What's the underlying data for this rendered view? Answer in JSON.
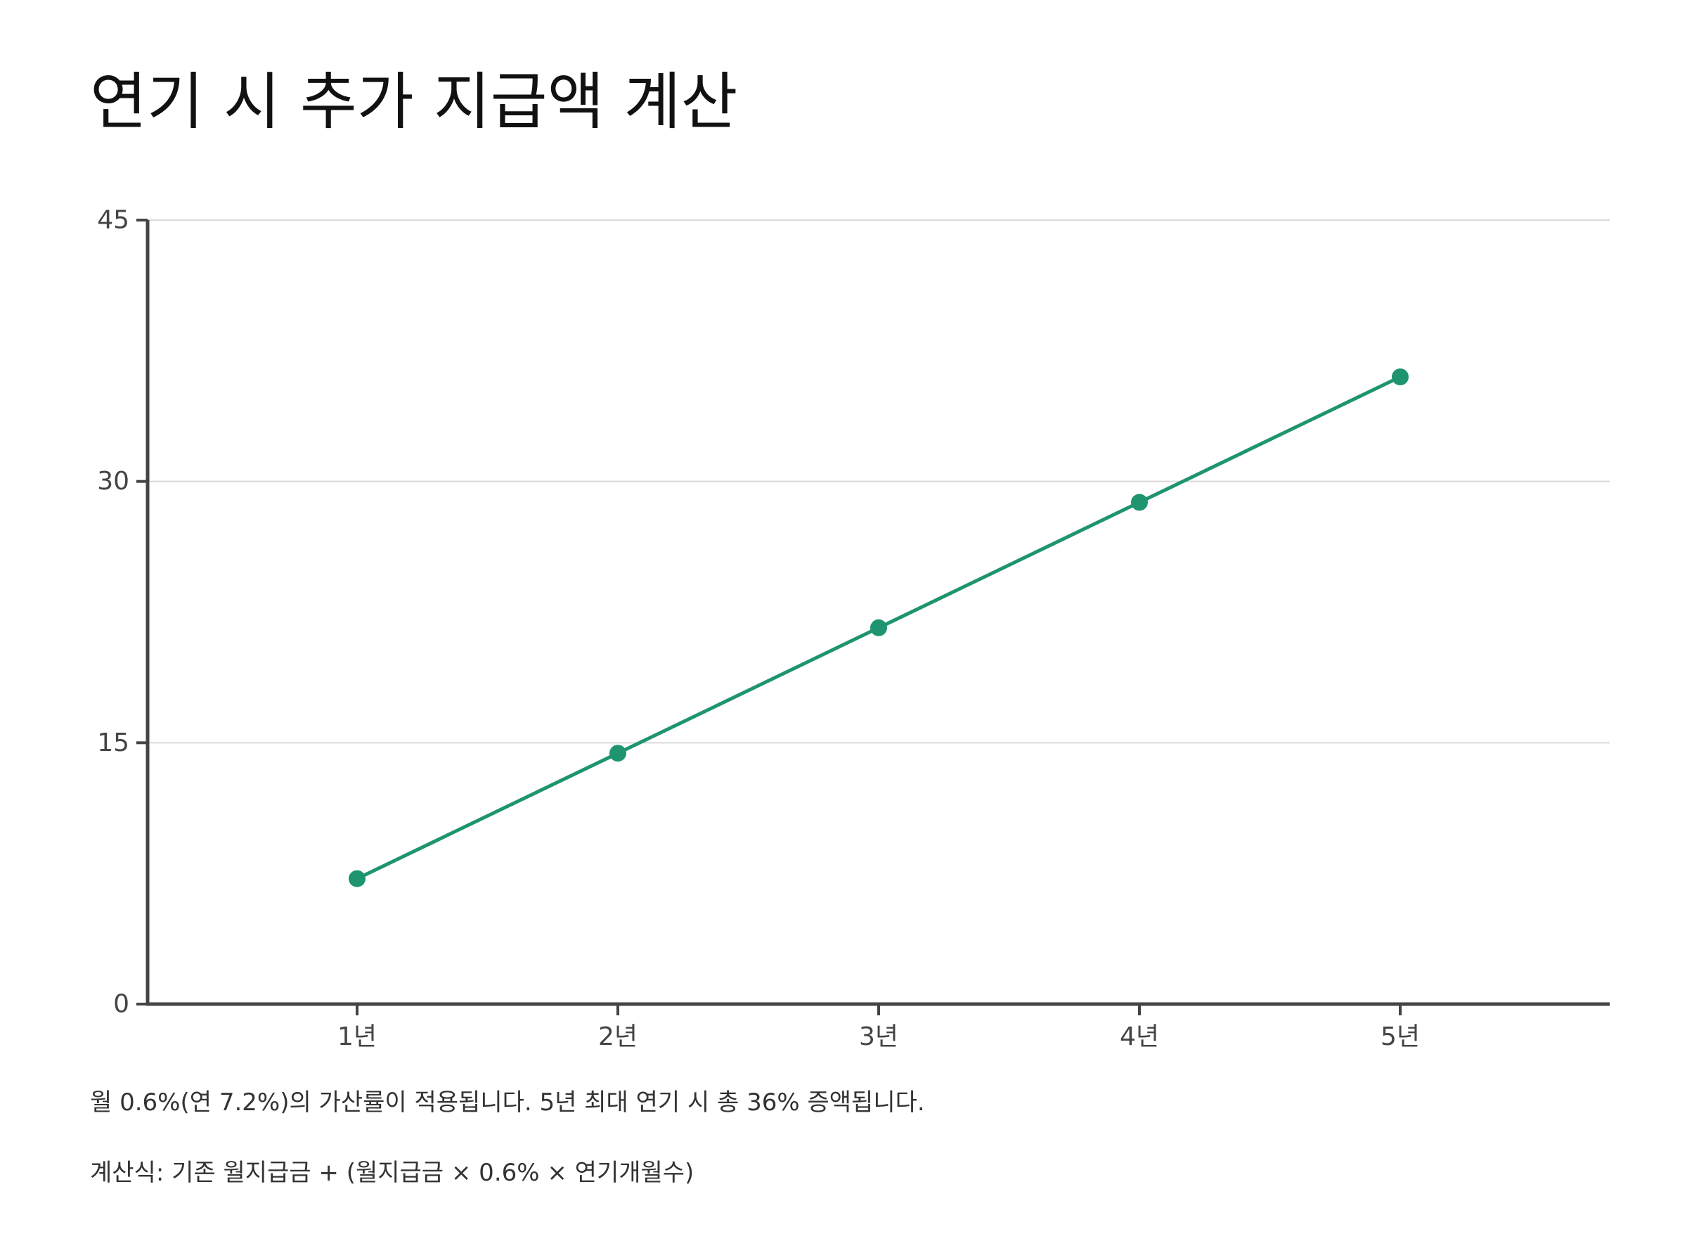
{
  "title": "연기 시 추가 지급액 계산",
  "chart_data": {
    "type": "line",
    "title": "연기 시 추가 지급액 계산",
    "categories": [
      "1년",
      "2년",
      "3년",
      "4년",
      "5년"
    ],
    "series": [
      {
        "values": [
          7.2,
          14.4,
          21.6,
          28.8,
          36.0
        ]
      }
    ],
    "ylim": [
      0,
      45
    ],
    "yticks": [
      0,
      15,
      30,
      45
    ],
    "grid": true,
    "xlabel": "",
    "ylabel": "",
    "line_color": "#1e9470",
    "axis_color": "#444444",
    "grid_color": "#d9d9d9"
  },
  "notes": {
    "line1": "월 0.6%(연 7.2%)의 가산률이 적용됩니다. 5년 최대 연기 시 총 36% 증액됩니다.",
    "line2": "계산식: 기존 월지급금 + (월지급금 × 0.6% × 연기개월수)"
  }
}
